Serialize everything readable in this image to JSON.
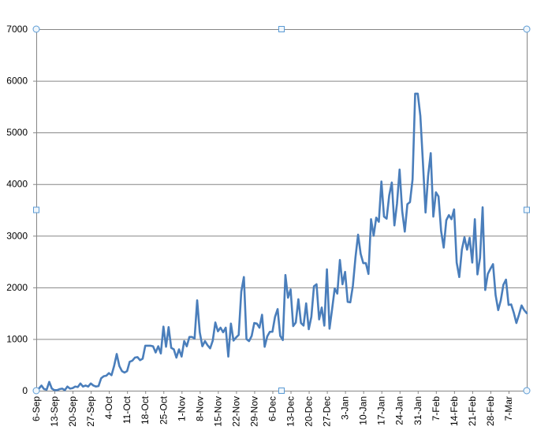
{
  "chart_data": {
    "type": "line",
    "title": "",
    "xlabel": "",
    "ylabel": "",
    "ylim": [
      0,
      7000
    ],
    "yticks": [
      0,
      1000,
      2000,
      3000,
      4000,
      5000,
      6000,
      7000
    ],
    "grid": true,
    "legend": "none",
    "colors": {
      "line": "#4a7ebb",
      "grid": "#868686",
      "axis": "#868686",
      "handle": "#5b9bd5"
    },
    "x_start": "2020-09-06",
    "xticks": [
      "6-Sep",
      "13-Sep",
      "20-Sep",
      "27-Sep",
      "4-Oct",
      "11-Oct",
      "18-Oct",
      "25-Oct",
      "1-Nov",
      "8-Nov",
      "15-Nov",
      "22-Nov",
      "29-Nov",
      "6-Dec",
      "13-Dec",
      "20-Dec",
      "27-Dec",
      "3-Jan",
      "10-Jan",
      "17-Jan",
      "24-Jan",
      "31-Jan",
      "7-Feb",
      "14-Feb",
      "21-Feb",
      "28-Feb",
      "7-Mar"
    ],
    "series": [
      {
        "values": [
          0,
          40,
          100,
          30,
          20,
          170,
          40,
          10,
          10,
          30,
          40,
          10,
          80,
          40,
          50,
          80,
          70,
          140,
          80,
          100,
          80,
          140,
          100,
          80,
          90,
          240,
          280,
          290,
          340,
          300,
          480,
          710,
          480,
          380,
          350,
          380,
          560,
          580,
          640,
          650,
          590,
          620,
          870,
          870,
          870,
          860,
          740,
          860,
          720,
          1240,
          850,
          1230,
          830,
          800,
          640,
          800,
          660,
          960,
          860,
          1040,
          1040,
          1010,
          1750,
          1130,
          860,
          960,
          880,
          820,
          970,
          1320,
          1150,
          1220,
          1130,
          1220,
          660,
          1300,
          970,
          1030,
          1080,
          1920,
          2200,
          1000,
          960,
          1060,
          1310,
          1300,
          1220,
          1470,
          850,
          1050,
          1140,
          1140,
          1430,
          1580,
          1060,
          980,
          2240,
          1800,
          1960,
          1250,
          1320,
          1770,
          1310,
          1260,
          1690,
          1190,
          1430,
          2020,
          2060,
          1380,
          1610,
          1260,
          2350,
          1200,
          1580,
          1980,
          1880,
          2530,
          2060,
          2300,
          1720,
          1710,
          2030,
          2580,
          3020,
          2650,
          2470,
          2470,
          2260,
          3320,
          3000,
          3350,
          3270,
          4050,
          3370,
          3330,
          3780,
          4030,
          3200,
          3620,
          4280,
          3480,
          3080,
          3610,
          3650,
          4090,
          5750,
          5750,
          5320,
          4410,
          3450,
          4160,
          4600,
          3370,
          3840,
          3760,
          3090,
          2770,
          3300,
          3400,
          3320,
          3510,
          2480,
          2200,
          2730,
          2970,
          2730,
          2960,
          2480,
          3320,
          2250,
          2570,
          3550,
          1950,
          2260,
          2360,
          2450,
          1850,
          1560,
          1750,
          2050,
          2150,
          1660,
          1670,
          1510,
          1310,
          1470,
          1650,
          1560,
          1500
        ]
      }
    ]
  }
}
